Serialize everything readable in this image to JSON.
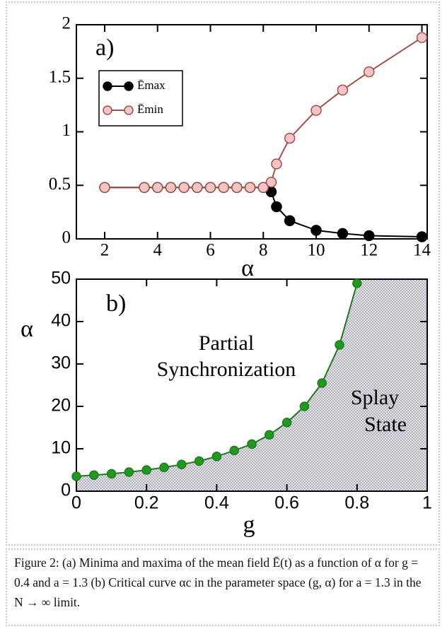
{
  "chart_data": [
    {
      "type": "line",
      "panel_label": "a)",
      "xlabel": "α",
      "x": [
        2,
        3.5,
        4,
        4.5,
        5,
        5.5,
        6,
        6.5,
        7,
        7.5,
        8,
        8.3,
        8.5,
        9,
        10,
        11,
        12,
        14
      ],
      "series": [
        {
          "name": "Ēmax",
          "color": "#000000",
          "marker_fill": "#000000",
          "values": [
            0.48,
            0.48,
            0.48,
            0.48,
            0.48,
            0.48,
            0.48,
            0.48,
            0.48,
            0.48,
            0.48,
            0.44,
            0.3,
            0.17,
            0.08,
            0.05,
            0.03,
            0.02
          ]
        },
        {
          "name": "Ēmin",
          "color": "#a0504a",
          "marker_fill": "#f2c4c4",
          "values": [
            0.48,
            0.48,
            0.48,
            0.48,
            0.48,
            0.48,
            0.48,
            0.48,
            0.48,
            0.48,
            0.48,
            0.53,
            0.7,
            0.94,
            1.2,
            1.39,
            1.56,
            1.88
          ]
        }
      ],
      "xlim": [
        0.93,
        14.2
      ],
      "ylim": [
        0,
        2
      ],
      "xticks": [
        2,
        4,
        6,
        8,
        10,
        12,
        14
      ],
      "yticks": [
        0,
        0.5,
        1,
        1.5,
        2
      ],
      "legend": "upper-left"
    },
    {
      "type": "line",
      "panel_label": "b)",
      "xlabel": "g",
      "ylabel": "α",
      "x": [
        0,
        0.05,
        0.1,
        0.15,
        0.2,
        0.25,
        0.3,
        0.35,
        0.4,
        0.45,
        0.5,
        0.55,
        0.6,
        0.65,
        0.7,
        0.75,
        0.8
      ],
      "series": [
        {
          "name": null,
          "color": "#1f7a1f",
          "marker_fill": "#1f9a1f",
          "area_color": "#c6c6cc",
          "values": [
            3.5,
            3.8,
            4.1,
            4.5,
            5.0,
            5.6,
            6.3,
            7.1,
            8.2,
            9.6,
            11.1,
            13.3,
            16.2,
            20.0,
            25.5,
            34.5,
            49.0
          ]
        }
      ],
      "xlim": [
        0,
        1
      ],
      "ylim": [
        0,
        50
      ],
      "xticks": [
        0,
        0.2,
        0.4,
        0.6,
        0.8,
        1
      ],
      "yticks": [
        0,
        10,
        20,
        30,
        40,
        50
      ],
      "annotations": [
        {
          "text": "Partial",
          "color": "#000000"
        },
        {
          "text": "Synchronization",
          "color": "#000000"
        },
        {
          "text": "Splay",
          "color": "#c0203a"
        },
        {
          "text": "State",
          "color": "#c0203a"
        }
      ]
    }
  ],
  "caption": "Figure 2: (a) Minima and maxima of the mean field Ē(t) as a function of α for g = 0.4 and a = 1.3 (b) Critical curve αc in the parameter space (g, α) for a = 1.3 in the N → ∞ limit."
}
